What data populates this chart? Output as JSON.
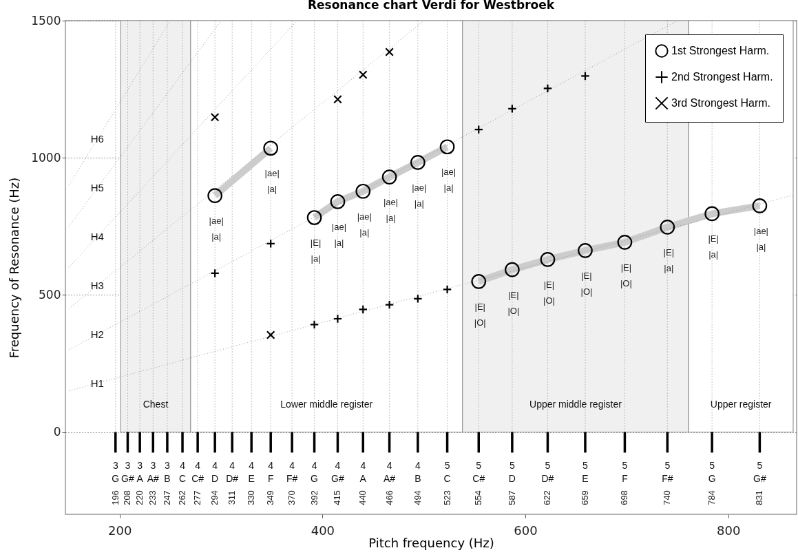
{
  "chart_data": {
    "type": "scatter",
    "title": "Resonance chart Verdi for Westbroek",
    "xlabel": "Pitch frequency (Hz)",
    "ylabel": "Frequency of Resonance (Hz)",
    "xlim": [
      150,
      864
    ],
    "ylim": [
      -300,
      1500
    ],
    "xticks": [
      200,
      400,
      600,
      800
    ],
    "yticks": [
      0,
      500,
      1000,
      1500
    ],
    "grid": "y",
    "legend": "top right",
    "series": [
      {
        "name": "1st Strongest Harm.",
        "marker": "circle",
        "color": "#000000",
        "x": [
          294,
          349,
          392,
          415,
          440,
          466,
          494,
          523,
          554,
          587,
          622,
          659,
          698,
          740,
          784,
          831
        ],
        "values": [
          862,
          1035,
          782,
          840,
          878,
          930,
          983,
          1040,
          549,
          592,
          629,
          662,
          692,
          747,
          796,
          825
        ],
        "value_labels": [
          "|ae|\n|a|",
          "|ae|\n|a|",
          "|E|\n|a|",
          "|ae|\n|a|",
          "|ae|\n|a|",
          "|ae|\n|a|",
          "|ae|\n|a|",
          "|ae|\n|a|",
          "|E|\n|O|",
          "|E|\n|O|",
          "|E|\n|O|",
          "|E|\n|O|",
          "|E|\n|O|",
          "|E|\n|a|",
          "|E|\n|a|",
          "|ae|\n|a|"
        ]
      },
      {
        "name": "2nd Strongest Harm.",
        "marker": "plus",
        "color": "#000000",
        "x": [
          294,
          349,
          392,
          415,
          440,
          466,
          494,
          523,
          554,
          587,
          622,
          659
        ],
        "values": [
          579,
          687,
          392,
          413,
          447,
          464,
          486,
          520,
          1103,
          1179,
          1253,
          1298
        ]
      },
      {
        "name": "3rd Strongest Harm.",
        "marker": "cross",
        "color": "#000000",
        "x": [
          294,
          349,
          415,
          440,
          466
        ],
        "values": [
          1148,
          354,
          1213,
          1303,
          1386
        ]
      },
      {
        "type": "line",
        "color": "#cccccc",
        "line_style": "solid",
        "x": [
          294,
          349
        ],
        "values": [
          862,
          1035
        ]
      },
      {
        "type": "line",
        "color": "#cccccc",
        "line_style": "solid",
        "x": [
          392,
          415,
          440,
          466,
          494,
          523
        ],
        "values": [
          782,
          840,
          878,
          930,
          983,
          1040
        ]
      },
      {
        "type": "line",
        "color": "#cccccc",
        "line_style": "solid",
        "x": [
          554,
          587,
          622,
          659,
          698,
          740,
          784,
          831
        ],
        "values": [
          549,
          592,
          629,
          662,
          692,
          747,
          796,
          825
        ]
      },
      {
        "type": "line",
        "color": "#999999",
        "line_style": "dotted",
        "x": [
          150,
          864
        ],
        "values": [
          150,
          864
        ]
      },
      {
        "type": "line",
        "color": "#999999",
        "line_style": "dotted",
        "x": [
          150,
          750
        ],
        "values": [
          300,
          1500
        ]
      },
      {
        "type": "line",
        "color": "#999999",
        "line_style": "dotted",
        "x": [
          150,
          500
        ],
        "values": [
          450,
          1500
        ]
      },
      {
        "type": "line",
        "color": "#999999",
        "line_style": "dotted",
        "x": [
          150,
          375
        ],
        "values": [
          600,
          1500
        ]
      },
      {
        "type": "line",
        "color": "#999999",
        "line_style": "dotted",
        "x": [
          150,
          300
        ],
        "values": [
          750,
          1500
        ]
      },
      {
        "type": "line",
        "color": "#999999",
        "line_style": "dotted",
        "x": [
          150,
          250
        ],
        "values": [
          900,
          1500
        ]
      },
      {
        "type": "bar",
        "color": "#000000",
        "x": [
          196,
          208,
          220,
          233,
          247,
          262,
          277,
          294,
          311,
          330,
          349,
          370,
          392,
          415,
          440,
          466,
          494,
          523,
          554,
          587,
          622,
          659,
          698,
          740,
          784,
          831
        ],
        "base": [
          -75,
          -75,
          -75,
          -75,
          -75,
          -75,
          -75,
          -75,
          -75,
          -75,
          -75,
          -75,
          -75,
          -75,
          -75,
          -75,
          -75,
          -75,
          -75,
          -75,
          -75,
          -75,
          -75,
          -75,
          -75,
          -75
        ],
        "values": [
          75,
          75,
          75,
          75,
          75,
          75,
          75,
          75,
          75,
          75,
          75,
          75,
          75,
          75,
          75,
          75,
          75,
          75,
          75,
          75,
          75,
          75,
          75,
          75,
          75,
          75
        ]
      }
    ],
    "bands": [
      {
        "axis": "x",
        "from": 201,
        "to": 270,
        "color": "#f0f0f0",
        "label": "Chest"
      },
      {
        "axis": "x",
        "from": 270,
        "to": 538,
        "color": "#ffffff",
        "label": "Lower middle register"
      },
      {
        "axis": "x",
        "from": 538,
        "to": 761,
        "color": "#f0f0f0",
        "label": "Upper middle register"
      },
      {
        "axis": "x",
        "from": 761,
        "to": 864,
        "color": "#ffffff",
        "label": "Upper register"
      }
    ],
    "ref_lines": [
      {
        "axis": "x",
        "value": 196,
        "color": "#888888",
        "line_style": "dotted"
      },
      {
        "axis": "x",
        "value": 208,
        "color": "#888888",
        "line_style": "dotted"
      },
      {
        "axis": "x",
        "value": 220,
        "color": "#888888",
        "line_style": "dotted"
      },
      {
        "axis": "x",
        "value": 233,
        "color": "#888888",
        "line_style": "dotted"
      },
      {
        "axis": "x",
        "value": 247,
        "color": "#888888",
        "line_style": "dotted"
      },
      {
        "axis": "x",
        "value": 262,
        "color": "#888888",
        "line_style": "dotted"
      },
      {
        "axis": "x",
        "value": 277,
        "color": "#888888",
        "line_style": "dotted"
      },
      {
        "axis": "x",
        "value": 294,
        "color": "#888888",
        "line_style": "dotted"
      },
      {
        "axis": "x",
        "value": 311,
        "color": "#888888",
        "line_style": "dotted"
      },
      {
        "axis": "x",
        "value": 330,
        "color": "#888888",
        "line_style": "dotted"
      },
      {
        "axis": "x",
        "value": 349,
        "color": "#888888",
        "line_style": "dotted"
      },
      {
        "axis": "x",
        "value": 370,
        "color": "#888888",
        "line_style": "dotted"
      },
      {
        "axis": "x",
        "value": 392,
        "color": "#888888",
        "line_style": "dotted"
      },
      {
        "axis": "x",
        "value": 415,
        "color": "#888888",
        "line_style": "dotted"
      },
      {
        "axis": "x",
        "value": 440,
        "color": "#888888",
        "line_style": "dotted"
      },
      {
        "axis": "x",
        "value": 466,
        "color": "#888888",
        "line_style": "dotted"
      },
      {
        "axis": "x",
        "value": 494,
        "color": "#888888",
        "line_style": "dotted"
      },
      {
        "axis": "x",
        "value": 523,
        "color": "#888888",
        "line_style": "dotted"
      },
      {
        "axis": "x",
        "value": 554,
        "color": "#888888",
        "line_style": "dotted"
      },
      {
        "axis": "x",
        "value": 587,
        "color": "#888888",
        "line_style": "dotted"
      },
      {
        "axis": "x",
        "value": 622,
        "color": "#888888",
        "line_style": "dotted"
      },
      {
        "axis": "x",
        "value": 659,
        "color": "#888888",
        "line_style": "dotted"
      },
      {
        "axis": "x",
        "value": 698,
        "color": "#888888",
        "line_style": "dotted"
      },
      {
        "axis": "x",
        "value": 740,
        "color": "#888888",
        "line_style": "dotted"
      },
      {
        "axis": "x",
        "value": 784,
        "color": "#888888",
        "line_style": "dotted"
      },
      {
        "axis": "x",
        "value": 831,
        "color": "#888888",
        "line_style": "dotted"
      }
    ],
    "annotations": [
      {
        "text": "H1",
        "x": 178,
        "y": 178
      },
      {
        "text": "H2",
        "x": 178,
        "y": 356
      },
      {
        "text": "H3",
        "x": 178,
        "y": 534
      },
      {
        "text": "H4",
        "x": 178,
        "y": 712
      },
      {
        "text": "H5",
        "x": 178,
        "y": 890
      },
      {
        "text": "H6",
        "x": 178,
        "y": 1068
      },
      "196",
      "208",
      "220",
      "233",
      "247",
      "262",
      "277",
      "294",
      "311",
      "330",
      "349",
      "370",
      "392",
      "415",
      "440",
      "466",
      "494",
      "523",
      "554",
      "587",
      "622",
      "659",
      "698",
      "740",
      "784",
      "831",
      {
        "text": "3",
        "x": 196,
        "y": -75
      },
      {
        "text": "G",
        "x": 196,
        "y": -75
      },
      {
        "text": "3",
        "x": 208,
        "y": -75
      },
      {
        "text": "G#",
        "x": 208,
        "y": -75
      },
      {
        "text": "3",
        "x": 220,
        "y": -75
      },
      {
        "text": "A",
        "x": 220,
        "y": -75
      },
      {
        "text": "3",
        "x": 233,
        "y": -75
      },
      {
        "text": "A#",
        "x": 233,
        "y": -75
      },
      {
        "text": "3",
        "x": 247,
        "y": -75
      },
      {
        "text": "B",
        "x": 247,
        "y": -75
      },
      {
        "text": "4",
        "x": 262,
        "y": -75
      },
      {
        "text": "C",
        "x": 262,
        "y": -75
      },
      {
        "text": "4",
        "x": 277,
        "y": -75
      },
      {
        "text": "C#",
        "x": 277,
        "y": -75
      },
      {
        "text": "4",
        "x": 294,
        "y": -75
      },
      {
        "text": "D",
        "x": 294,
        "y": -75
      },
      {
        "text": "4",
        "x": 311,
        "y": -75
      },
      {
        "text": "D#",
        "x": 311,
        "y": -75
      },
      {
        "text": "4",
        "x": 330,
        "y": -75
      },
      {
        "text": "E",
        "x": 330,
        "y": -75
      },
      {
        "text": "4",
        "x": 349,
        "y": -75
      },
      {
        "text": "F",
        "x": 349,
        "y": -75
      },
      {
        "text": "4",
        "x": 370,
        "y": -75
      },
      {
        "text": "F#",
        "x": 370,
        "y": -75
      },
      {
        "text": "4",
        "x": 392,
        "y": -75
      },
      {
        "text": "G",
        "x": 392,
        "y": -75
      },
      {
        "text": "4",
        "x": 415,
        "y": -75
      },
      {
        "text": "G#",
        "x": 415,
        "y": -75
      },
      {
        "text": "4",
        "x": 440,
        "y": -75
      },
      {
        "text": "A",
        "x": 440,
        "y": -75
      },
      {
        "text": "4",
        "x": 466,
        "y": -75
      },
      {
        "text": "A#",
        "x": 466,
        "y": -75
      },
      {
        "text": "4",
        "x": 494,
        "y": -75
      },
      {
        "text": "B",
        "x": 494,
        "y": -75
      },
      {
        "text": "5",
        "x": 523,
        "y": -75
      },
      {
        "text": "C",
        "x": 523,
        "y": -75
      },
      {
        "text": "5",
        "x": 554,
        "y": -75
      },
      {
        "text": "C#",
        "x": 554,
        "y": -75
      },
      {
        "text": "5",
        "x": 587,
        "y": -75
      },
      {
        "text": "D",
        "x": 587,
        "y": -75
      },
      {
        "text": "5",
        "x": 622,
        "y": -75
      },
      {
        "text": "D#",
        "x": 622,
        "y": -75
      },
      {
        "text": "5",
        "x": 659,
        "y": -75
      },
      {
        "text": "E",
        "x": 659,
        "y": -75
      },
      {
        "text": "5",
        "x": 698,
        "y": -75
      },
      {
        "text": "F",
        "x": 698,
        "y": -75
      },
      {
        "text": "5",
        "x": 740,
        "y": -75
      },
      {
        "text": "F#",
        "x": 740,
        "y": -75
      },
      {
        "text": "5",
        "x": 784,
        "y": -75
      },
      {
        "text": "G",
        "x": 784,
        "y": -75
      },
      {
        "text": "5",
        "x": 831,
        "y": -75
      },
      {
        "text": "G#",
        "x": 831,
        "y": -75
      }
    ]
  }
}
